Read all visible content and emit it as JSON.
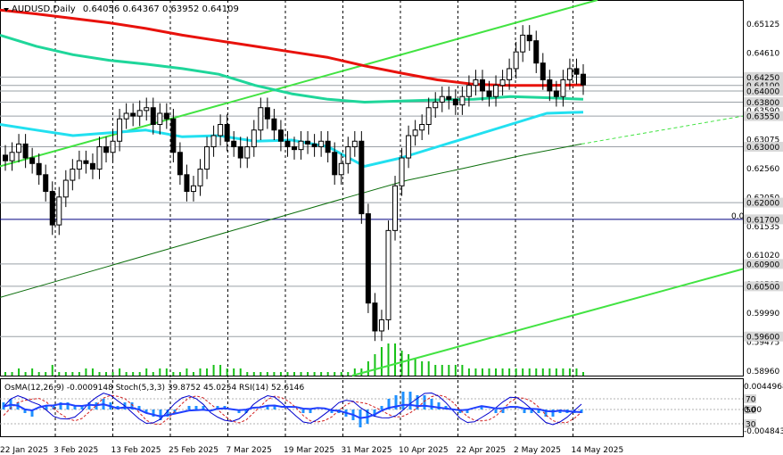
{
  "header": {
    "symbol_timeframe": "AUDUSD,Daily",
    "ohlc": "0.64056 0.64367 0.63952 0.64109",
    "indicator_label": "OsMA(12,26,9) -0.0009148 Stoch(5,3,3) 39.8752 45.0254 RSI(14) 52.6146"
  },
  "colors": {
    "background": "#ffffff",
    "candle": "#000000",
    "ma_red": "#e8120c",
    "ma_seagreen": "#1fd69a",
    "ma_cyan": "#22e0f0",
    "ma_darkgreen": "#0b6e0b",
    "channel": "#42e342",
    "level_line": "#9aa0a6",
    "zero_line": "#000080",
    "osma_hist": "#1e90ff",
    "stoch_main": "#0000cd",
    "stoch_signal": "#d22020",
    "rsi": "#2040ff",
    "volume": "#16c016"
  },
  "chart_data": {
    "type": "line",
    "title": "AUDUSD,Daily",
    "x_ticks": [
      "22 Jan 2025",
      "3 Feb 2025",
      "13 Feb 2025",
      "25 Feb 2025",
      "7 Mar 2025",
      "19 Mar 2025",
      "31 Mar 2025",
      "10 Apr 2025",
      "22 Apr 2025",
      "2 May 2025",
      "14 May 2025"
    ],
    "ylim": [
      0.589,
      0.6563
    ],
    "y_ticks": [
      "0.65125",
      "0.64610",
      "0.64100",
      "0.63590",
      "0.63075",
      "0.62560",
      "0.62050",
      "0.61535",
      "0.61020",
      "0.60505",
      "0.59990",
      "0.59475",
      "0.58960"
    ],
    "levels": [
      {
        "label": "0.64250",
        "value": 0.6425
      },
      {
        "label": "0.64100",
        "value": 0.641
      },
      {
        "label": "0.64000",
        "value": 0.64
      },
      {
        "label": "0.63800",
        "value": 0.638
      },
      {
        "label": "0.63550",
        "value": 0.6355
      },
      {
        "label": "0.63000",
        "value": 0.63
      },
      {
        "label": "0.62000",
        "value": 0.62
      },
      {
        "label": "0.61700",
        "value": 0.617
      },
      {
        "label": "0.60900",
        "value": 0.609
      },
      {
        "label": "0.60500",
        "value": 0.605
      },
      {
        "label": "0.59600",
        "value": 0.596
      }
    ],
    "zero_marker": "0.0",
    "close_series": [
      0.6275,
      0.629,
      0.6305,
      0.628,
      0.627,
      0.625,
      0.622,
      0.616,
      0.621,
      0.624,
      0.626,
      0.6275,
      0.627,
      0.626,
      0.63,
      0.629,
      0.631,
      0.635,
      0.636,
      0.6355,
      0.6365,
      0.637,
      0.634,
      0.636,
      0.635,
      0.629,
      0.625,
      0.622,
      0.623,
      0.626,
      0.63,
      0.632,
      0.634,
      0.631,
      0.63,
      0.628,
      0.63,
      0.633,
      0.637,
      0.635,
      0.633,
      0.631,
      0.63,
      0.6295,
      0.631,
      0.6305,
      0.63,
      0.631,
      0.629,
      0.625,
      0.627,
      0.63,
      0.631,
      0.618,
      0.602,
      0.597,
      0.599,
      0.615,
      0.623,
      0.628,
      0.632,
      0.633,
      0.634,
      0.637,
      0.638,
      0.639,
      0.6385,
      0.6375,
      0.639,
      0.641,
      0.642,
      0.64,
      0.639,
      0.641,
      0.642,
      0.644,
      0.647,
      0.65,
      0.649,
      0.645,
      0.642,
      0.64,
      0.639,
      0.642,
      0.644,
      0.643,
      0.6411
    ],
    "series": [
      {
        "values": [
          0.6545,
          0.6538,
          0.653,
          0.6522,
          0.6512,
          0.65,
          0.649,
          0.648,
          0.647,
          0.646,
          0.6445,
          0.6432,
          0.642,
          0.6412,
          0.641,
          0.641,
          0.6411
        ]
      },
      {
        "values": [
          0.65,
          0.648,
          0.6465,
          0.6455,
          0.6448,
          0.644,
          0.643,
          0.641,
          0.6395,
          0.6385,
          0.638,
          0.6382,
          0.6384,
          0.6385,
          0.639,
          0.6388,
          0.6385
        ]
      },
      {
        "values": [
          0.634,
          0.633,
          0.632,
          0.6325,
          0.633,
          0.6318,
          0.632,
          0.631,
          0.6312,
          0.63,
          0.6265,
          0.628,
          0.63,
          0.632,
          0.634,
          0.636,
          0.6362
        ]
      },
      {
        "values": [
          0.603,
          0.606,
          0.609,
          0.612,
          0.615,
          0.618,
          0.621,
          0.624,
          0.6262,
          0.6285,
          0.6305
        ]
      }
    ],
    "volume": [
      1,
      1,
      2,
      1,
      2,
      1,
      1,
      3,
      1,
      1,
      1,
      1,
      2,
      2,
      1,
      1,
      1,
      2,
      1,
      1,
      1,
      2,
      1,
      2,
      2,
      1,
      1,
      2,
      1,
      2,
      2,
      3,
      3,
      2,
      2,
      2,
      1,
      1,
      1,
      1,
      1,
      1,
      1,
      1,
      1,
      1,
      1,
      1,
      1,
      1,
      1,
      1,
      2,
      2,
      4,
      6,
      8,
      9,
      9,
      7,
      6,
      5,
      4,
      4,
      3,
      3,
      3,
      3,
      3,
      2,
      2,
      2,
      2,
      2,
      2,
      2,
      2,
      2,
      2,
      2,
      2,
      2,
      2,
      2,
      2,
      2,
      1
    ],
    "indicators": {
      "osma_value": "-0.0009148",
      "stoch_main": "39.8752",
      "stoch_signal": "45.0254",
      "rsi": "52.6146",
      "ylim_labels": [
        "0.0044968",
        "0.00",
        "-0.004843"
      ],
      "level_marks": [
        "70",
        "50",
        "30"
      ],
      "osma_hist": [
        2,
        3,
        2,
        -1,
        -2,
        0,
        1,
        1,
        2,
        2,
        1,
        1,
        2,
        2,
        3,
        2,
        1,
        2,
        2,
        1,
        -1,
        -2,
        -3,
        -2,
        -1,
        0,
        1,
        1,
        1,
        0,
        1,
        1,
        0,
        -1,
        -1,
        0,
        0,
        1,
        1,
        0,
        0,
        0,
        -1,
        -1,
        0,
        0,
        -1,
        -1,
        -2,
        -3,
        -5,
        -4,
        -2,
        1,
        3,
        4,
        5,
        5,
        4,
        4,
        3,
        2,
        1,
        0,
        -1,
        -1,
        0,
        1,
        0,
        -1,
        -1,
        0,
        0,
        -1,
        -1,
        -1,
        -2,
        -2,
        -1,
        -1,
        -1,
        -1
      ]
    }
  }
}
